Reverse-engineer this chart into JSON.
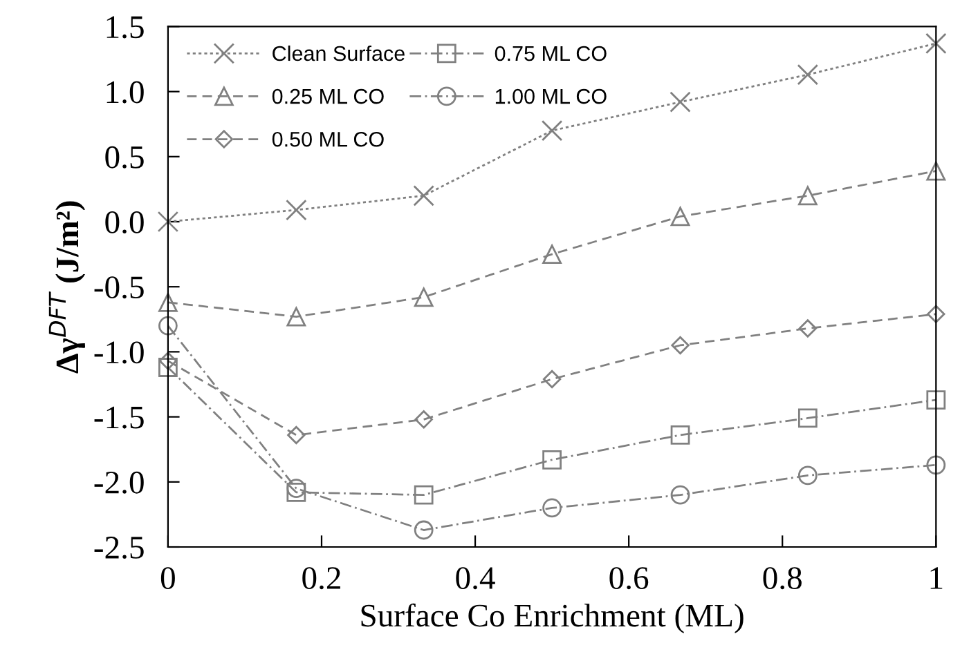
{
  "chart_data": {
    "type": "line",
    "xlabel": "Surface Co Enrichment (ML)",
    "ylabel": "Δγ$^{DFT}$ (J/m²)",
    "x": [
      0,
      0.167,
      0.333,
      0.5,
      0.667,
      0.833,
      1
    ],
    "series": [
      {
        "name": "Clean Surface",
        "color": "#808080",
        "marker": "cross",
        "line_style": "dotted",
        "values": [
          0,
          0.09,
          0.2,
          0.7,
          0.92,
          1.13,
          1.37
        ]
      },
      {
        "name": "0.25 ML CO",
        "color": "#808080",
        "marker": "triangle",
        "line_style": "dashed",
        "values": [
          -0.62,
          -0.73,
          -0.58,
          -0.25,
          0.04,
          0.2,
          0.39
        ]
      },
      {
        "name": "0.50 ML CO",
        "color": "#808080",
        "marker": "diamond",
        "line_style": "dashed",
        "values": [
          -1.07,
          -1.64,
          -1.52,
          -1.21,
          -0.95,
          -0.82,
          -0.71
        ]
      },
      {
        "name": "0.75 ML CO",
        "color": "#808080",
        "marker": "square",
        "line_style": "dashdot",
        "values": [
          -1.12,
          -2.08,
          -2.1,
          -1.83,
          -1.64,
          -1.51,
          -1.37
        ]
      },
      {
        "name": "1.00 ML CO",
        "color": "#808080",
        "marker": "circle",
        "line_style": "dashdot",
        "values": [
          -0.8,
          -2.05,
          -2.37,
          -2.2,
          -2.1,
          -1.95,
          -1.87
        ]
      }
    ],
    "xlim": [
      0,
      1
    ],
    "xticks": [
      0,
      0.2,
      0.4,
      0.6,
      0.8,
      1
    ],
    "ylim": [
      -2.5,
      1.5
    ],
    "yticks": [
      {
        "value": -2.5,
        "label": "-2.5"
      },
      {
        "value": -2.0,
        "label": "-2.0"
      },
      {
        "value": -1.5,
        "label": "-1.5"
      },
      {
        "value": -1.0,
        "label": "-1.0"
      },
      {
        "value": -0.5,
        "label": "-0.5"
      },
      {
        "value": 0,
        "label": "0.0"
      },
      {
        "value": 0.5,
        "label": "0.5"
      },
      {
        "value": 1.0,
        "label": "1.0"
      },
      {
        "value": 1.5,
        "label": "1.5"
      }
    ],
    "grid": false,
    "legend": "top left"
  }
}
